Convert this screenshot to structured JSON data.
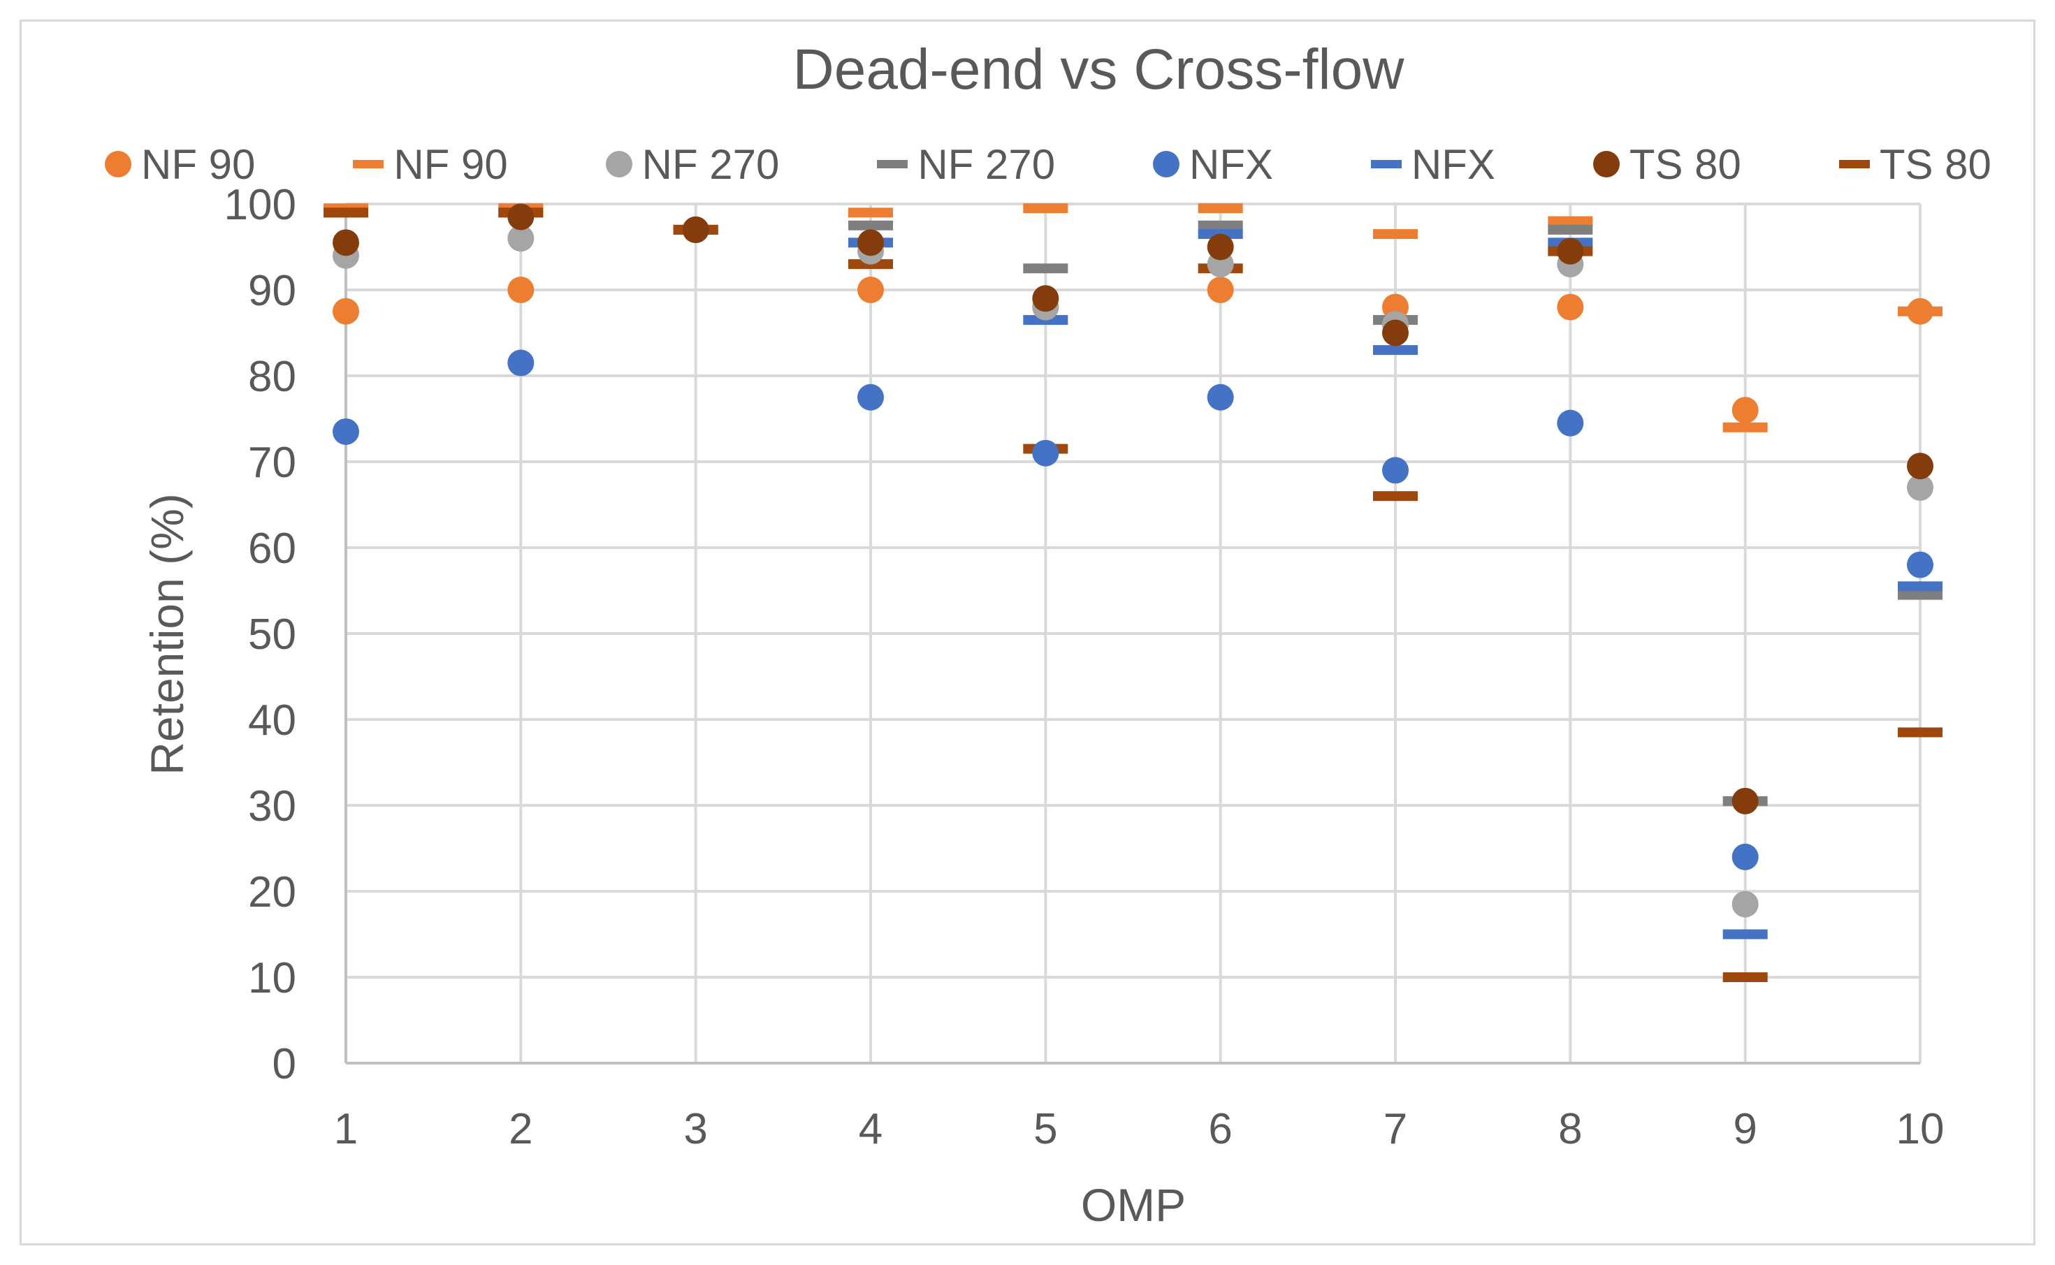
{
  "chart_data": {
    "type": "scatter",
    "title": "Dead-end vs Cross-flow",
    "xlabel": "OMP",
    "ylabel": "Retention (%)",
    "x": [
      1,
      2,
      3,
      4,
      5,
      6,
      7,
      8,
      9,
      10
    ],
    "x_ticks": [
      "1",
      "2",
      "3",
      "4",
      "5",
      "6",
      "7",
      "8",
      "9",
      "10"
    ],
    "ylim": [
      0,
      100
    ],
    "y_ticks": [
      "0",
      "10",
      "20",
      "30",
      "40",
      "50",
      "60",
      "70",
      "80",
      "90",
      "100"
    ],
    "grid": true,
    "legend_position": "top",
    "series": [
      {
        "name": "NF 90",
        "marker": "circle",
        "color": "#ed7d31",
        "values": [
          87.5,
          90,
          97,
          90,
          88,
          90,
          88,
          88,
          76,
          87.5
        ]
      },
      {
        "name": "NF 90",
        "marker": "dash",
        "color": "#ed7d31",
        "values": [
          99.5,
          99.5,
          97,
          99,
          99.5,
          99.5,
          96.5,
          98,
          74,
          87.5
        ]
      },
      {
        "name": "NF 270",
        "marker": "circle",
        "color": "#a5a5a5",
        "values": [
          94,
          96,
          97,
          94.5,
          88,
          93,
          86,
          93,
          18.5,
          67
        ]
      },
      {
        "name": "NF 270",
        "marker": "dash",
        "color": "#7f7f7f",
        "values": [
          99,
          99,
          97,
          97.5,
          92.5,
          97.5,
          86.5,
          97,
          30.5,
          54.5
        ]
      },
      {
        "name": "NFX",
        "marker": "circle",
        "color": "#4472c4",
        "values": [
          73.5,
          81.5,
          97,
          77.5,
          71,
          77.5,
          69,
          74.5,
          24,
          58
        ]
      },
      {
        "name": "NFX",
        "marker": "dash",
        "color": "#4472c4",
        "values": [
          99,
          99,
          97,
          95.5,
          86.5,
          96.5,
          83,
          95.5,
          15,
          55.5
        ]
      },
      {
        "name": "TS 80",
        "marker": "circle",
        "color": "#843c0c",
        "values": [
          95.5,
          98.5,
          97,
          95.5,
          89,
          95,
          85,
          94.5,
          30.5,
          69.5
        ]
      },
      {
        "name": "TS 80",
        "marker": "dash",
        "color": "#9e480e",
        "values": [
          99,
          99,
          97,
          93,
          71.5,
          92.5,
          66,
          94.5,
          10,
          38.5
        ]
      }
    ]
  }
}
